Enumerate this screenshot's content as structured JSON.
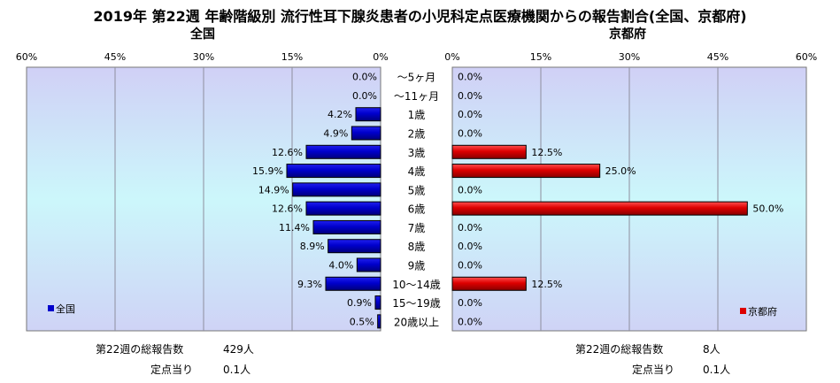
{
  "title": "2019年 第22週 年齢階級別 流行性耳下腺炎患者の小児科定点医療機関からの報告割合(全国、京都府)",
  "panels": {
    "left_title": "全国",
    "right_title": "京都府"
  },
  "legend": {
    "left": "全国",
    "right": "京都府"
  },
  "colors": {
    "national": "#0000cc",
    "kyoto": "#dd0000"
  },
  "footer": {
    "left": {
      "total_label": "第22週の総報告数",
      "total_value": "429人",
      "per_label": "定点当り",
      "per_value": "0.1人"
    },
    "right": {
      "total_label": "第22週の総報告数",
      "total_value": "8人",
      "per_label": "定点当り",
      "per_value": "0.1人"
    }
  },
  "chart_data": {
    "type": "bar",
    "orientation": "horizontal-butterfly",
    "categories": [
      "～5ヶ月",
      "～11ヶ月",
      "1歳",
      "2歳",
      "3歳",
      "4歳",
      "5歳",
      "6歳",
      "7歳",
      "8歳",
      "9歳",
      "10～14歳",
      "15～19歳",
      "20歳以上"
    ],
    "series": [
      {
        "name": "全国",
        "values": [
          0.0,
          0.0,
          4.2,
          4.9,
          12.6,
          15.9,
          14.9,
          12.6,
          11.4,
          8.9,
          4.0,
          9.3,
          0.9,
          0.5
        ],
        "labels": [
          "0.0%",
          "0.0%",
          "4.2%",
          "4.9%",
          "12.6%",
          "15.9%",
          "14.9%",
          "12.6%",
          "11.4%",
          "8.9%",
          "4.0%",
          "9.3%",
          "0.9%",
          "0.5%"
        ]
      },
      {
        "name": "京都府",
        "values": [
          0.0,
          0.0,
          0.0,
          0.0,
          12.5,
          25.0,
          0.0,
          50.0,
          0.0,
          0.0,
          0.0,
          12.5,
          0.0,
          0.0
        ],
        "labels": [
          "0.0%",
          "0.0%",
          "0.0%",
          "0.0%",
          "12.5%",
          "25.0%",
          "0.0%",
          "50.0%",
          "0.0%",
          "0.0%",
          "0.0%",
          "12.5%",
          "0.0%",
          "0.0%"
        ]
      }
    ],
    "xlim": [
      0,
      60
    ],
    "left_ticks": [
      "60%",
      "45%",
      "30%",
      "15%",
      "0%"
    ],
    "right_ticks": [
      "0%",
      "15%",
      "30%",
      "45%",
      "60%"
    ],
    "grid": true,
    "legend_placement": "bottom-left / bottom-right"
  }
}
